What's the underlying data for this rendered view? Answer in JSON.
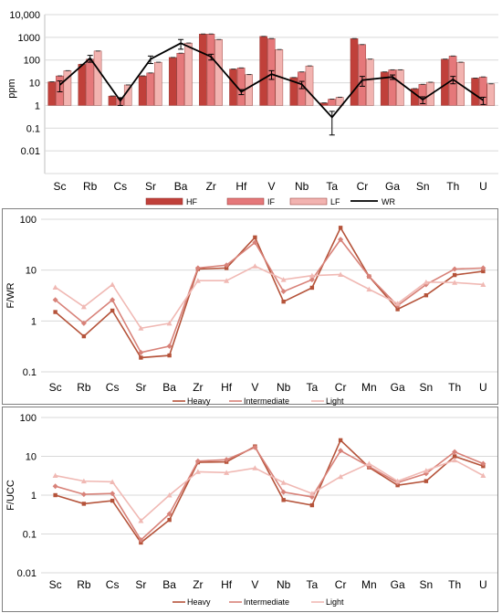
{
  "chart_data": [
    {
      "type": "bar",
      "ylabel": "ppm",
      "scale": "log",
      "ylim": [
        0.001,
        10000
      ],
      "ytick_labels": [
        "0.01",
        "0.1",
        "1",
        "10",
        "100",
        "1000",
        "10,000"
      ],
      "categories": [
        "Sc",
        "Rb",
        "Cs",
        "Sr",
        "Ba",
        "Zr",
        "Hf",
        "V",
        "Nb",
        "Ta",
        "Cr",
        "Ga",
        "Sn",
        "Th",
        "U"
      ],
      "series": [
        {
          "name": "HF",
          "color": "#c0403a",
          "values": [
            11,
            65,
            2.6,
            20,
            130,
            1400,
            40,
            1100,
            17,
            1.3,
            880,
            30,
            5.5,
            110,
            16
          ]
        },
        {
          "name": "IF",
          "color": "#e5787a",
          "values": [
            20,
            110,
            2.1,
            27,
            200,
            1400,
            45,
            880,
            30,
            1.9,
            480,
            37,
            8.5,
            150,
            18
          ]
        },
        {
          "name": "LF",
          "color": "#f2b3b0",
          "values": [
            34,
            250,
            8,
            80,
            560,
            800,
            23,
            290,
            55,
            2.3,
            110,
            37,
            10.5,
            80,
            9
          ]
        }
      ],
      "wr": {
        "name": "WR",
        "color": "#000000",
        "values": [
          8,
          120,
          1.6,
          110,
          550,
          140,
          4,
          24,
          8.5,
          0.3,
          13,
          18,
          1.8,
          14,
          1.7
        ]
      },
      "wr_errors": [
        4,
        40,
        0.6,
        40,
        250,
        40,
        1,
        10,
        3,
        0.25,
        6,
        4,
        0.6,
        5,
        0.6
      ]
    },
    {
      "type": "line",
      "ylabel": "F/WR",
      "scale": "log",
      "ylim": [
        0.1,
        100
      ],
      "ytick_labels": [
        "0.1",
        "1",
        "10",
        "100"
      ],
      "categories": [
        "Sc",
        "Rb",
        "Cs",
        "Sr",
        "Ba",
        "Zr",
        "Hf",
        "V",
        "Nb",
        "Ta",
        "Cr",
        "Mn",
        "Ga",
        "Sn",
        "Th",
        "U"
      ],
      "series": [
        {
          "name": "Heavy",
          "color": "#b5533a",
          "values": [
            1.5,
            0.5,
            1.6,
            0.19,
            0.21,
            10.5,
            11,
            44,
            2.4,
            4.5,
            68,
            7.5,
            1.7,
            3.2,
            8,
            9.5
          ]
        },
        {
          "name": "Intermediate",
          "color": "#d88279",
          "values": [
            2.6,
            0.9,
            2.6,
            0.24,
            0.32,
            11,
            12.5,
            35,
            3.8,
            6.5,
            40,
            7.5,
            2.0,
            5.2,
            10.5,
            11
          ]
        },
        {
          "name": "Light",
          "color": "#f0b9b4",
          "values": [
            4.6,
            1.9,
            5.2,
            0.72,
            0.9,
            6.2,
            6.2,
            12,
            6.5,
            7.8,
            8.2,
            4.2,
            2.2,
            5.8,
            5.7,
            5.2
          ]
        }
      ]
    },
    {
      "type": "line",
      "ylabel": "F/UCC",
      "scale": "log",
      "ylim": [
        0.01,
        100
      ],
      "ytick_labels": [
        "0.01",
        "0.1",
        "1",
        "10",
        "100"
      ],
      "categories": [
        "Sc",
        "Rb",
        "Cs",
        "Sr",
        "Ba",
        "Zr",
        "Hf",
        "V",
        "Nb",
        "Ta",
        "Cr",
        "Mn",
        "Ga",
        "Sn",
        "Th",
        "U"
      ],
      "series": [
        {
          "name": "Heavy",
          "color": "#b5533a",
          "values": [
            1.0,
            0.6,
            0.72,
            0.06,
            0.23,
            7.0,
            7.2,
            18,
            0.75,
            0.55,
            26,
            5.2,
            1.8,
            2.3,
            10,
            5.6
          ]
        },
        {
          "name": "Intermediate",
          "color": "#d88279",
          "values": [
            1.7,
            1.05,
            1.1,
            0.07,
            0.33,
            7.5,
            8.2,
            17,
            1.2,
            0.9,
            14,
            5.5,
            2.1,
            3.6,
            13,
            6.5
          ]
        },
        {
          "name": "Light",
          "color": "#f0b9b4",
          "values": [
            3.2,
            2.3,
            2.2,
            0.22,
            1.0,
            4.0,
            3.8,
            5.0,
            2.1,
            1.1,
            3.0,
            6.5,
            2.3,
            4.3,
            8.0,
            3.2
          ]
        }
      ]
    }
  ]
}
